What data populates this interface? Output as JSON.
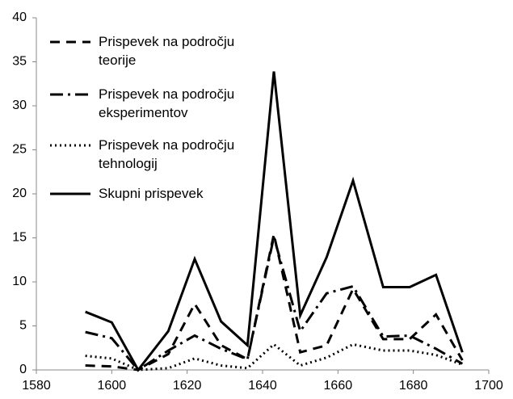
{
  "chart_data": {
    "type": "line",
    "x": [
      1593,
      1600,
      1607,
      1615,
      1622,
      1629,
      1636,
      1643,
      1650,
      1657,
      1664,
      1672,
      1679,
      1686,
      1693
    ],
    "series": [
      {
        "name": "Prispevek na področju teorije",
        "color": "#000000",
        "dash": "12,8",
        "values": [
          0.5,
          0.4,
          0,
          1.8,
          7.5,
          2.8,
          1.2,
          15.4,
          2.0,
          2.8,
          9.2,
          3.5,
          3.5,
          6.3,
          1.1
        ]
      },
      {
        "name": "Prispevek na področju eksperimentov",
        "color": "#000000",
        "dash": "16,6,3,6",
        "values": [
          4.3,
          3.6,
          0,
          2.2,
          3.9,
          2.4,
          1.2,
          15.1,
          4.4,
          8.7,
          9.5,
          3.8,
          3.9,
          2.4,
          0.7
        ]
      },
      {
        "name": "Prispevek na področju tehnologij",
        "color": "#000000",
        "dash": "2,4",
        "values": [
          1.6,
          1.3,
          0,
          0.2,
          1.3,
          0.5,
          0.2,
          2.9,
          0.5,
          1.4,
          2.9,
          2.2,
          2.2,
          1.7,
          0.6
        ]
      },
      {
        "name": "Skupni prispevek",
        "color": "#000000",
        "dash": "none",
        "values": [
          6.6,
          5.4,
          0,
          4.4,
          12.6,
          5.5,
          2.8,
          33.9,
          6.2,
          12.8,
          21.5,
          9.4,
          9.4,
          10.8,
          2.0
        ]
      }
    ],
    "xlim": [
      1580,
      1700
    ],
    "xticks": [
      1580,
      1600,
      1620,
      1640,
      1660,
      1680,
      1700
    ],
    "ylim": [
      0,
      40
    ],
    "yticks": [
      0,
      5,
      10,
      15,
      20,
      25,
      30,
      35,
      40
    ],
    "grid": false
  }
}
